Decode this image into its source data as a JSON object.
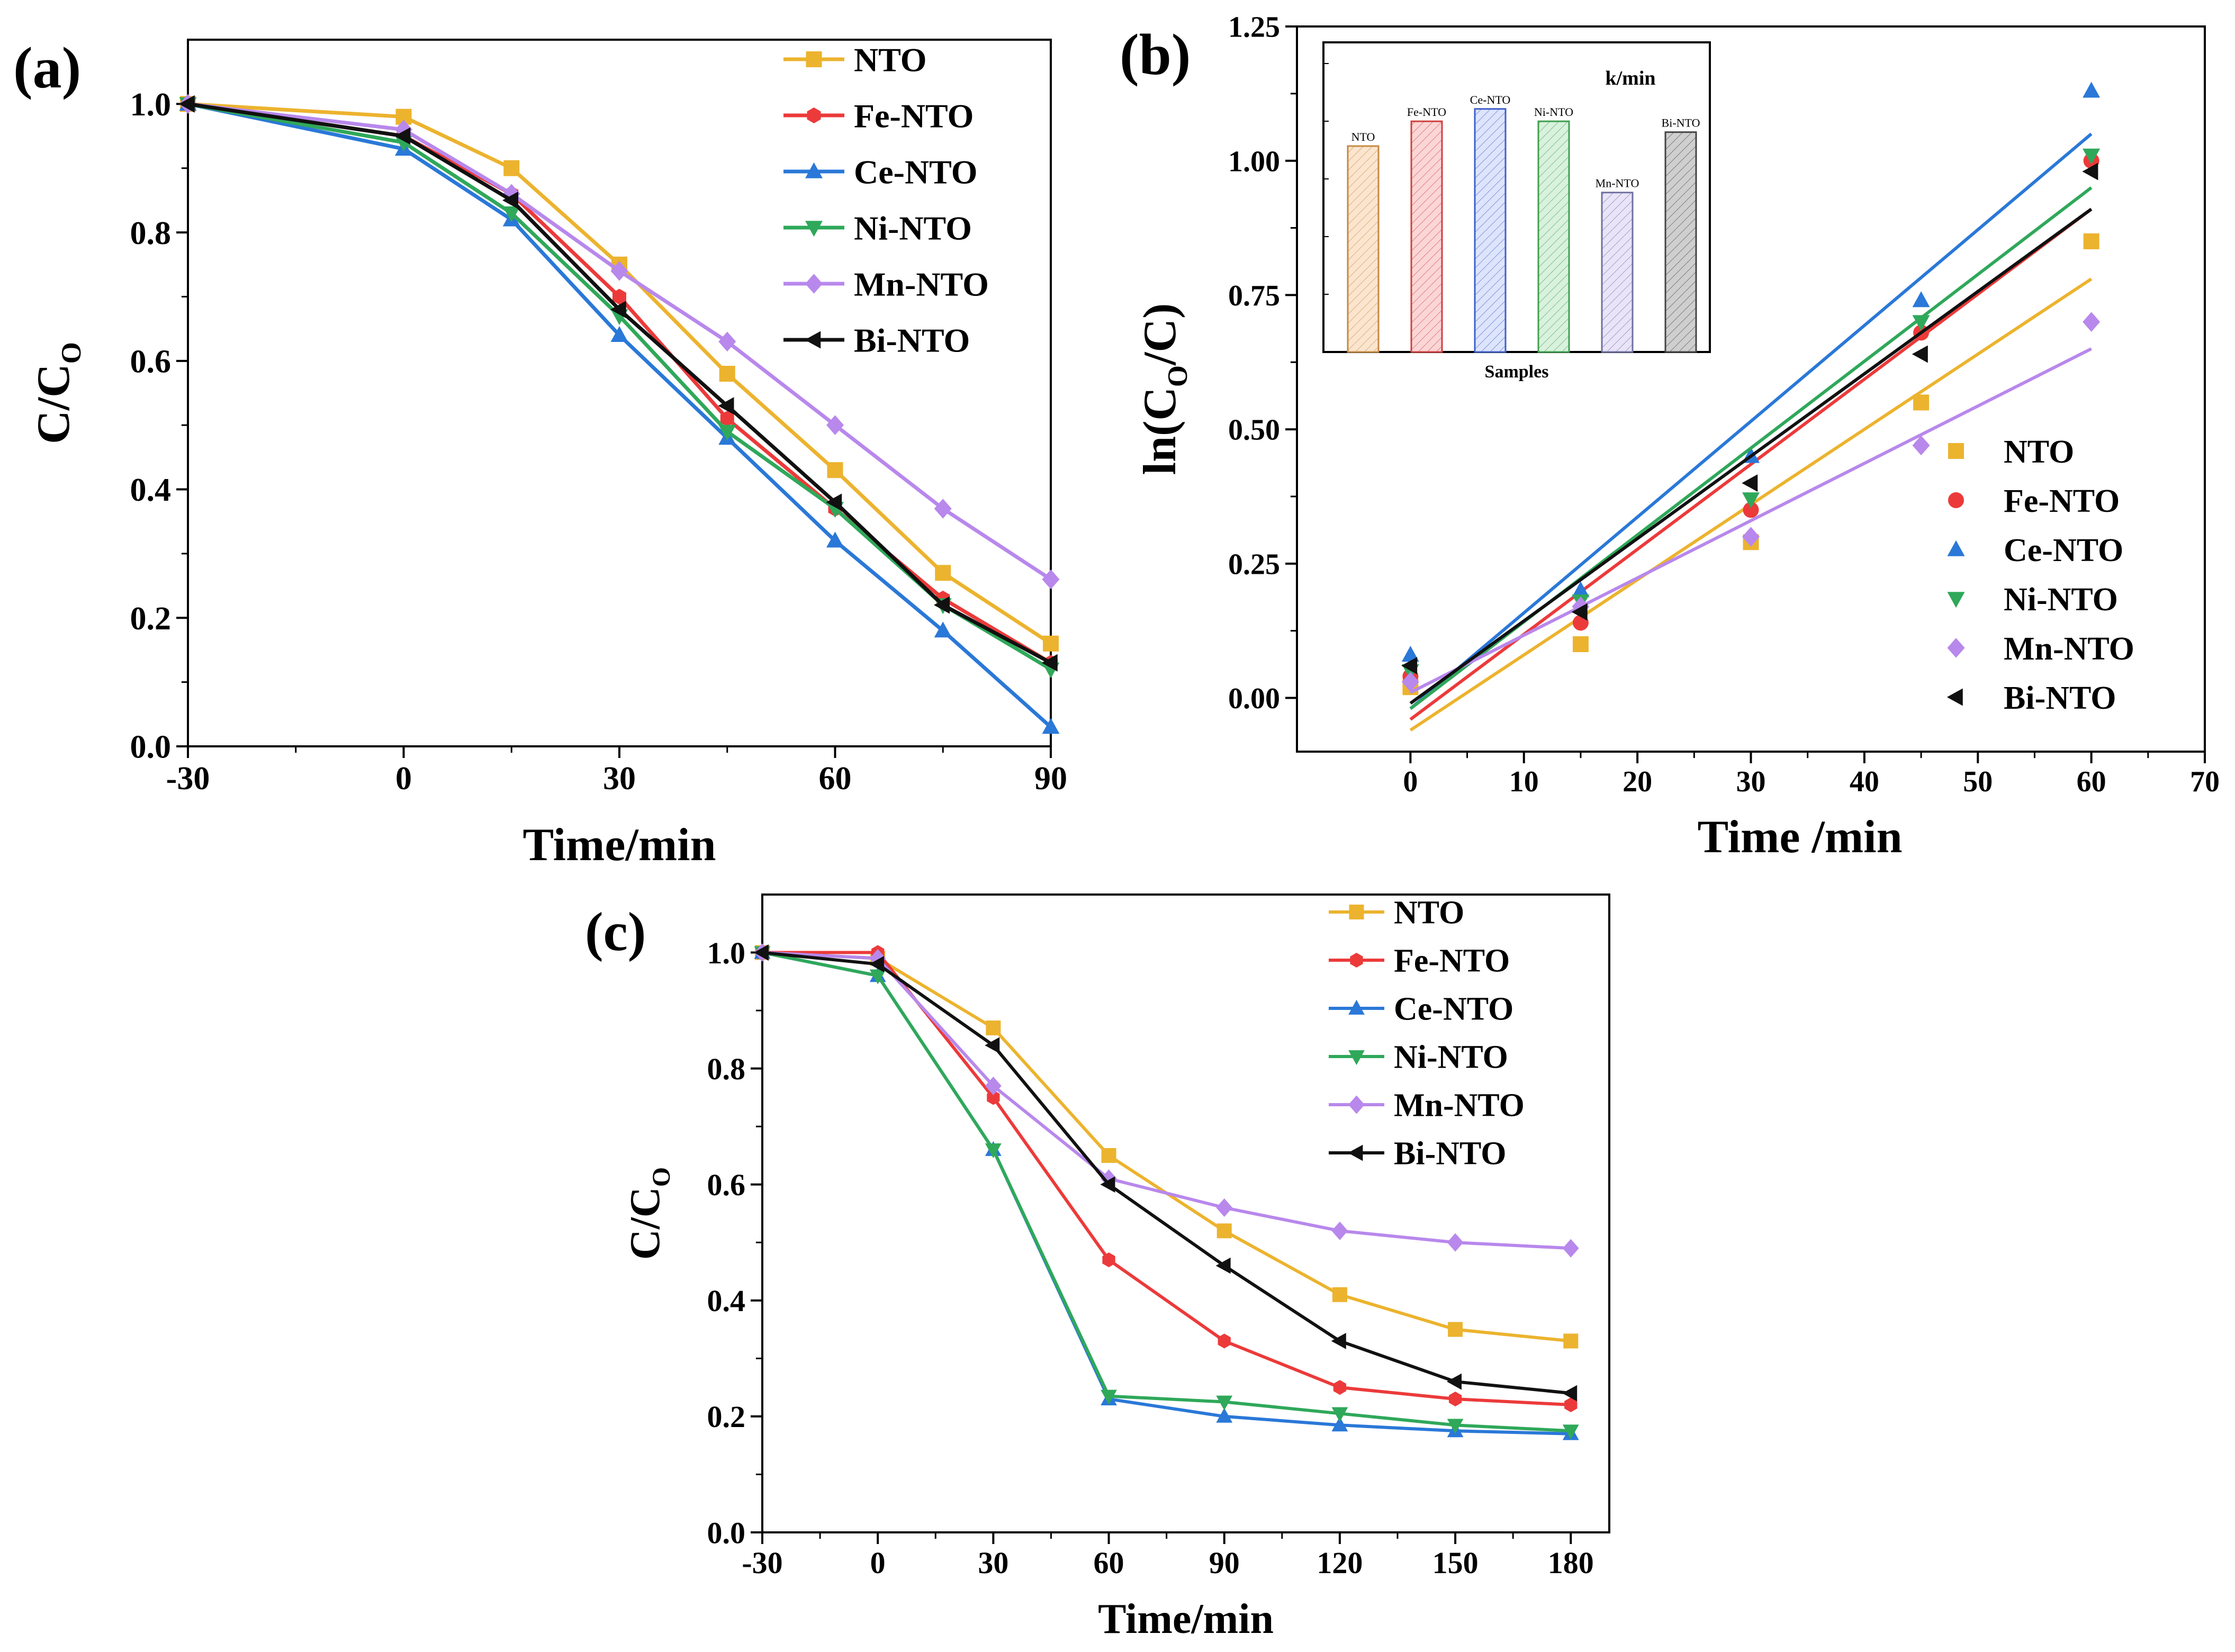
{
  "colors": {
    "NTO": "#ecb32e",
    "Fe-NTO": "#ec3a3a",
    "Ce-NTO": "#2a78d8",
    "Ni-NTO": "#2fa85a",
    "Mn-NTO": "#b888ec",
    "Bi-NTO": "#111111"
  },
  "chart_data": [
    {
      "panel": "(a)",
      "type": "line",
      "xlabel": "Time/min",
      "ylabel": "C/C",
      "ylabel_sub": "O",
      "xlim": [
        -30,
        90
      ],
      "ylim": [
        0,
        1.1
      ],
      "xticks": [
        -30,
        0,
        30,
        60,
        90
      ],
      "xtick_labels": [
        "-30",
        "0",
        "30",
        "60",
        "90"
      ],
      "yticks": [
        0,
        0.2,
        0.4,
        0.6,
        0.8,
        1.0
      ],
      "ytick_labels": [
        "0.0",
        "0.2",
        "0.4",
        "0.6",
        "0.8",
        "1.0"
      ],
      "legend_position": "top-right",
      "series": [
        {
          "name": "NTO",
          "marker": "square",
          "x": [
            -30,
            0,
            15,
            30,
            45,
            60,
            75,
            90
          ],
          "y": [
            1.0,
            0.98,
            0.9,
            0.75,
            0.58,
            0.43,
            0.27,
            0.16
          ]
        },
        {
          "name": "Fe-NTO",
          "marker": "hexagon",
          "x": [
            -30,
            0,
            15,
            30,
            45,
            60,
            75,
            90
          ],
          "y": [
            1.0,
            0.95,
            0.86,
            0.7,
            0.51,
            0.37,
            0.23,
            0.13
          ]
        },
        {
          "name": "Ce-NTO",
          "marker": "triangle-up",
          "x": [
            -30,
            0,
            15,
            30,
            45,
            60,
            75,
            90
          ],
          "y": [
            1.0,
            0.93,
            0.82,
            0.64,
            0.48,
            0.32,
            0.18,
            0.03
          ]
        },
        {
          "name": "Ni-NTO",
          "marker": "triangle-down",
          "x": [
            -30,
            0,
            15,
            30,
            45,
            60,
            75,
            90
          ],
          "y": [
            1.0,
            0.94,
            0.83,
            0.67,
            0.49,
            0.37,
            0.22,
            0.12
          ]
        },
        {
          "name": "Mn-NTO",
          "marker": "diamond",
          "x": [
            -30,
            0,
            15,
            30,
            45,
            60,
            75,
            90
          ],
          "y": [
            1.0,
            0.96,
            0.86,
            0.74,
            0.63,
            0.5,
            0.37,
            0.26
          ]
        },
        {
          "name": "Bi-NTO",
          "marker": "triangle-left",
          "x": [
            -30,
            0,
            15,
            30,
            45,
            60,
            75,
            90
          ],
          "y": [
            1.0,
            0.95,
            0.85,
            0.68,
            0.53,
            0.38,
            0.22,
            0.13
          ]
        }
      ]
    },
    {
      "panel": "(b)",
      "type": "scatter",
      "xlabel": "Time /min",
      "ylabel": "ln(C/C)",
      "xlim": [
        -10,
        70
      ],
      "ylim": [
        -0.1,
        1.25
      ],
      "xticks": [
        0,
        10,
        20,
        30,
        40,
        50,
        60,
        70
      ],
      "xtick_labels": [
        "0",
        "10",
        "20",
        "30",
        "40",
        "50",
        "60",
        "70"
      ],
      "yticks": [
        0,
        0.25,
        0.5,
        0.75,
        1.0,
        1.25
      ],
      "ytick_labels": [
        "0.00",
        "0.25",
        "0.50",
        "0.75",
        "1.00",
        "1.25"
      ],
      "legend_position": "lower-right",
      "series": [
        {
          "name": "NTO",
          "marker": "square",
          "x": [
            0,
            15,
            30,
            45,
            60
          ],
          "y": [
            0.02,
            0.1,
            0.29,
            0.55,
            0.85
          ],
          "fit": [
            -0.06,
            0.78
          ]
        },
        {
          "name": "Fe-NTO",
          "marker": "circle",
          "x": [
            0,
            15,
            30,
            45,
            60
          ],
          "y": [
            0.04,
            0.14,
            0.35,
            0.68,
            1.0
          ],
          "fit": [
            -0.04,
            0.91
          ]
        },
        {
          "name": "Ce-NTO",
          "marker": "triangle-up",
          "x": [
            0,
            15,
            30,
            45,
            60
          ],
          "y": [
            0.08,
            0.2,
            0.45,
            0.74,
            1.13
          ],
          "fit": [
            -0.02,
            1.05
          ]
        },
        {
          "name": "Ni-NTO",
          "marker": "triangle-down",
          "x": [
            0,
            15,
            30,
            45,
            60
          ],
          "y": [
            0.05,
            0.18,
            0.37,
            0.7,
            1.01
          ],
          "fit": [
            -0.02,
            0.95
          ]
        },
        {
          "name": "Mn-NTO",
          "marker": "diamond",
          "x": [
            0,
            15,
            30,
            45,
            60
          ],
          "y": [
            0.03,
            0.17,
            0.3,
            0.47,
            0.7
          ],
          "fit": [
            0.01,
            0.65
          ]
        },
        {
          "name": "Bi-NTO",
          "marker": "triangle-left",
          "x": [
            0,
            15,
            30,
            45,
            60
          ],
          "y": [
            0.06,
            0.16,
            0.4,
            0.64,
            0.98
          ],
          "fit": [
            -0.01,
            0.91
          ]
        }
      ],
      "inset": {
        "type": "bar",
        "title": "k/min",
        "xlabel": "Samples",
        "categories": [
          "NTO",
          "Fe-NTO",
          "Ce-NTO",
          "Ni-NTO",
          "Mn-NTO",
          "Bi-NTO"
        ],
        "values": [
          0.0133,
          0.0149,
          0.0157,
          0.0149,
          0.0103,
          0.0142
        ],
        "ylim": [
          0.0,
          0.02
        ],
        "fills": [
          "#fbe5cf",
          "#fbd6d6",
          "#dde4fb",
          "#d9f1dd",
          "#e9e4f7",
          "#cfcfcf"
        ],
        "edges": [
          "#c48a45",
          "#d04040",
          "#4060c8",
          "#40a050",
          "#7070a0",
          "#444444"
        ]
      }
    },
    {
      "panel": "(c)",
      "type": "line",
      "xlabel": "Time/min",
      "ylabel": "C/C",
      "ylabel_sub": "O",
      "xlim": [
        -30,
        190
      ],
      "ylim": [
        0,
        1.1
      ],
      "xticks": [
        -30,
        0,
        30,
        60,
        90,
        120,
        150,
        180
      ],
      "xtick_labels": [
        "-30",
        "0",
        "30",
        "60",
        "90",
        "120",
        "150",
        "180"
      ],
      "yticks": [
        0,
        0.2,
        0.4,
        0.6,
        0.8,
        1.0
      ],
      "ytick_labels": [
        "0.0",
        "0.2",
        "0.4",
        "0.6",
        "0.8",
        "1.0"
      ],
      "legend_position": "top-right",
      "series": [
        {
          "name": "NTO",
          "marker": "square",
          "x": [
            -30,
            0,
            30,
            60,
            90,
            120,
            150,
            180
          ],
          "y": [
            1.0,
            0.99,
            0.87,
            0.65,
            0.52,
            0.41,
            0.35,
            0.33
          ]
        },
        {
          "name": "Fe-NTO",
          "marker": "hexagon",
          "x": [
            -30,
            0,
            30,
            60,
            90,
            120,
            150,
            180
          ],
          "y": [
            1.0,
            1.0,
            0.75,
            0.47,
            0.33,
            0.25,
            0.23,
            0.22
          ]
        },
        {
          "name": "Ce-NTO",
          "marker": "triangle-up",
          "x": [
            -30,
            0,
            30,
            60,
            90,
            120,
            150,
            180
          ],
          "y": [
            1.0,
            0.96,
            0.66,
            0.23,
            0.2,
            0.185,
            0.175,
            0.17
          ]
        },
        {
          "name": "Ni-NTO",
          "marker": "triangle-down",
          "x": [
            -30,
            0,
            30,
            60,
            90,
            120,
            150,
            180
          ],
          "y": [
            1.0,
            0.96,
            0.66,
            0.235,
            0.225,
            0.205,
            0.185,
            0.175
          ]
        },
        {
          "name": "Mn-NTO",
          "marker": "diamond",
          "x": [
            -30,
            0,
            30,
            60,
            90,
            120,
            150,
            180
          ],
          "y": [
            1.0,
            0.99,
            0.77,
            0.61,
            0.56,
            0.52,
            0.5,
            0.49
          ]
        },
        {
          "name": "Bi-NTO",
          "marker": "triangle-left",
          "x": [
            -30,
            0,
            30,
            60,
            90,
            120,
            150,
            180
          ],
          "y": [
            1.0,
            0.98,
            0.84,
            0.6,
            0.46,
            0.33,
            0.26,
            0.24
          ]
        }
      ]
    }
  ]
}
